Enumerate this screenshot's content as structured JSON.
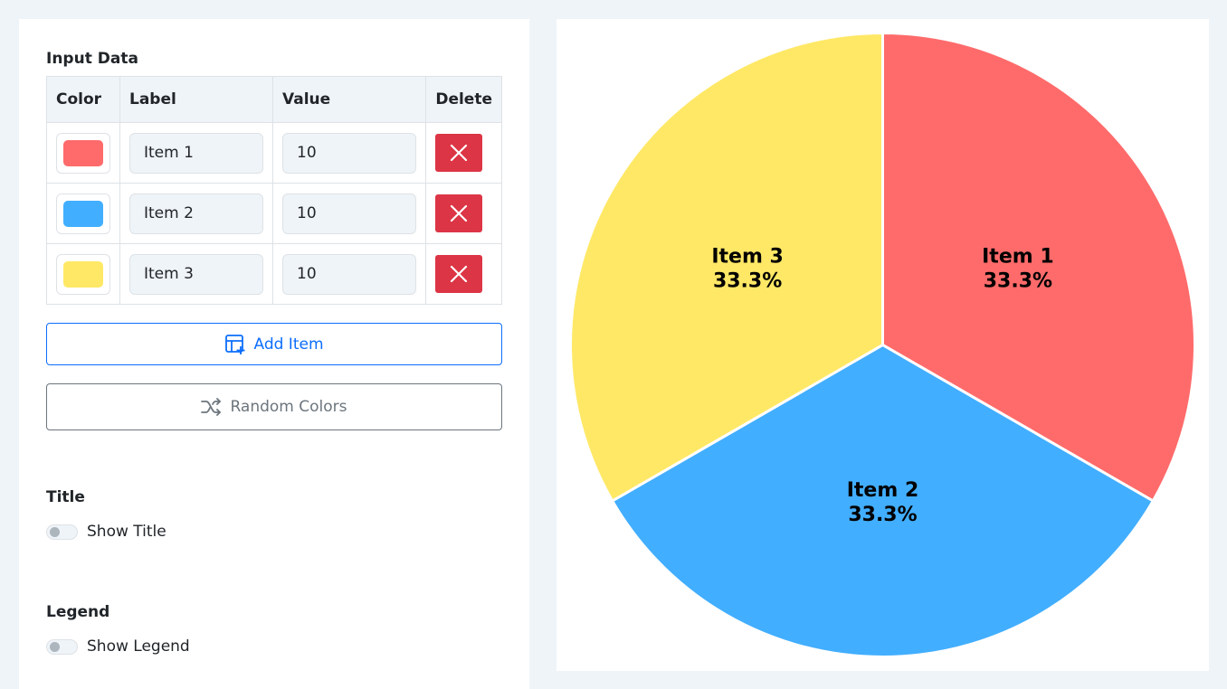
{
  "input": {
    "heading": "Input Data",
    "columns": {
      "color": "Color",
      "label": "Label",
      "value": "Value",
      "delete": "Delete"
    },
    "rows": [
      {
        "color": "#ff6b6b",
        "label": "Item 1",
        "value": "10"
      },
      {
        "color": "#42aeff",
        "label": "Item 2",
        "value": "10"
      },
      {
        "color": "#ffe866",
        "label": "Item 3",
        "value": "10"
      }
    ],
    "add_label": "Add Item",
    "random_label": "Random Colors"
  },
  "title_section": {
    "heading": "Title",
    "toggle_label": "Show Title"
  },
  "legend_section": {
    "heading": "Legend",
    "toggle_label": "Show Legend"
  },
  "chart_data": {
    "type": "pie",
    "categories": [
      "Item 1",
      "Item 2",
      "Item 3"
    ],
    "values": [
      10,
      10,
      10
    ],
    "percent_labels": [
      "33.3%",
      "33.3%",
      "33.3%"
    ],
    "colors": [
      "#ff6b6b",
      "#42aeff",
      "#ffe866"
    ],
    "title": "",
    "legend": "hidden"
  }
}
